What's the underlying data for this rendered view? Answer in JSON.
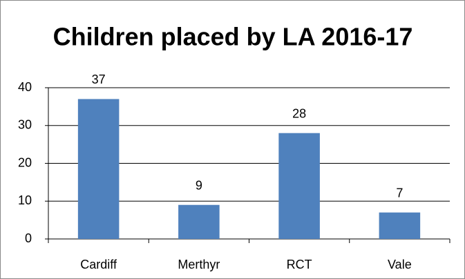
{
  "chart_data": {
    "type": "bar",
    "title": "Children placed by LA 2016-17",
    "categories": [
      "Cardiff",
      "Merthyr",
      "RCT",
      "Vale"
    ],
    "values": [
      37,
      9,
      28,
      7
    ],
    "color": "#4f81bd",
    "ylim": [
      0,
      40
    ],
    "yticks": [
      0,
      10,
      20,
      30,
      40
    ],
    "grid": true
  }
}
